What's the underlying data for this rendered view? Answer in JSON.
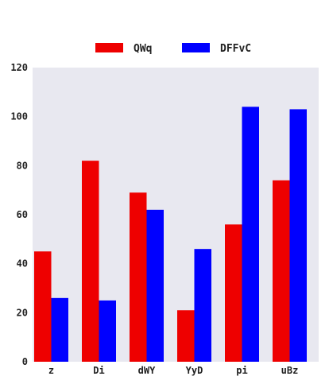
{
  "chart_data": {
    "type": "bar",
    "title": "",
    "xlabel": "",
    "ylabel": "",
    "categories": [
      "z",
      "Di",
      "dWY",
      "YyD",
      "pi",
      "uBz"
    ],
    "series": [
      {
        "name": "QWq",
        "color": "#ee0000",
        "values": [
          45,
          82,
          69,
          21,
          56,
          74
        ]
      },
      {
        "name": "DFFvC",
        "color": "#0000ff",
        "values": [
          26,
          25,
          62,
          46,
          104,
          103
        ]
      }
    ],
    "ylim": [
      0,
      120
    ],
    "yticks": [
      0,
      20,
      40,
      60,
      80,
      100,
      120
    ],
    "grid": false,
    "legend_position": "top-center",
    "plot_background": "#e8e8f0"
  }
}
